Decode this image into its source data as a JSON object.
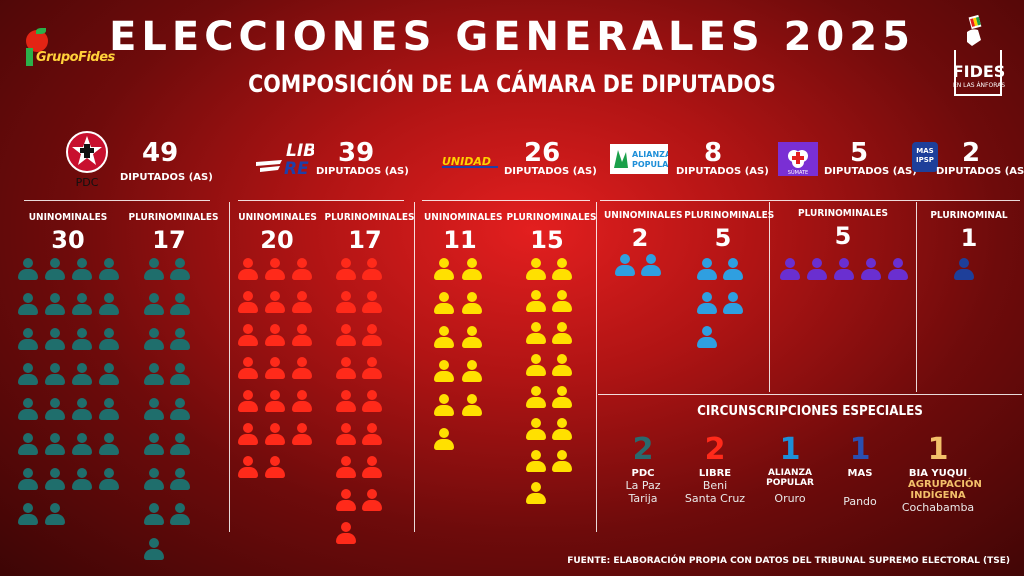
{
  "header": {
    "title": "ELECCIONES GENERALES 2025",
    "subtitle": "COMPOSICIÓN DE LA CÁMARA DE DIPUTADOS",
    "brand_left": "GrupoFides",
    "brand_right": "FIDES",
    "brand_right_tag": "EN LAS ÁNFORAS"
  },
  "parties": [
    {
      "logo": "PDC",
      "total": "49",
      "label": "DIPUTADOS (AS)",
      "color": "#1f6e6c"
    },
    {
      "logo": "LIBRE",
      "total": "39",
      "label": "DIPUTADOS (AS)",
      "color": "#ff2a1a"
    },
    {
      "logo": "UNIDAD",
      "total": "26",
      "label": "DIPUTADOS (AS)",
      "color": "#ffe000"
    },
    {
      "logo": "ALIANZA POPULAR",
      "total": "8",
      "label": "DIPUTADOS (AS)",
      "color": "#2f9fe0"
    },
    {
      "logo": "SÚMATE",
      "total": "5",
      "label": "DIPUTADOS (AS)",
      "color": "#6a2fd0"
    },
    {
      "logo": "MAS IPSP",
      "total": "2",
      "label": "DIPUTADOS (AS)",
      "color": "#1e3f9a"
    }
  ],
  "seat_columns": [
    {
      "party": "PDC",
      "header": "UNINOMINALES",
      "count": 30
    },
    {
      "party": "PDC",
      "header": "PLURINOMINALES",
      "count": 17
    },
    {
      "party": "LIBRE",
      "header": "UNINOMINALES",
      "count": 20
    },
    {
      "party": "LIBRE",
      "header": "PLURINOMINALES",
      "count": 17
    },
    {
      "party": "UNIDAD",
      "header": "UNINOMINALES",
      "count": 11
    },
    {
      "party": "UNIDAD",
      "header": "PLURINOMINALES",
      "count": 15
    },
    {
      "party": "ALIANZA POPULAR",
      "header": "UNINOMINALES",
      "count": 2
    },
    {
      "party": "ALIANZA POPULAR",
      "header": "PLURINOMINALES",
      "count": 5
    },
    {
      "party": "SÚMATE",
      "header": "PLURINOMINALES",
      "count": 5
    },
    {
      "party": "MAS IPSP",
      "header": "PLURINOMINAL",
      "count": 1
    }
  ],
  "special": {
    "title": "CIRCUNSCRIPCIONES ESPECIALES",
    "items": [
      {
        "count": "2",
        "party": "PDC",
        "detail1": "La Paz",
        "detail2": "Tarija",
        "color": "#2a6a6e"
      },
      {
        "count": "2",
        "party": "LIBRE",
        "detail1": "Beni",
        "detail2": "Santa Cruz",
        "color": "#ff2a1a"
      },
      {
        "count": "1",
        "party": "ALIANZA POPULAR",
        "detail1": "Oruro",
        "detail2": "",
        "color": "#1e8fd8"
      },
      {
        "count": "1",
        "party": "MAS",
        "detail1": "Pando",
        "detail2": "",
        "color": "#2a4fb0"
      },
      {
        "count": "1",
        "party": "BIA YUQUI",
        "sub": "AGRUPACIÓN INDÍGENA",
        "detail1": "Cochabamba",
        "detail2": "",
        "color": "#f3c06a"
      }
    ]
  },
  "footer": "FUENTE: ELABORACIÓN PROPIA CON DATOS DEL TRIBUNAL SUPREMO ELECTORAL (TSE)"
}
